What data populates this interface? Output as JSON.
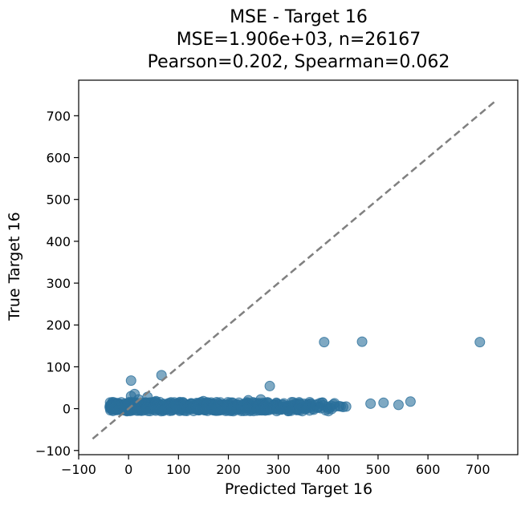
{
  "chart_data": {
    "type": "scatter",
    "title": "MSE - Target 16",
    "subtitle_lines": [
      "MSE=1.906e+03, n=26167",
      "Pearson=0.202, Spearman=0.062"
    ],
    "xlabel": "Predicted Target 16",
    "ylabel": "True Target 16",
    "xlim": [
      -100,
      780
    ],
    "ylim": [
      -110,
      785
    ],
    "xticks": [
      -100,
      0,
      100,
      200,
      300,
      400,
      500,
      600,
      700
    ],
    "xtick_labels": [
      "−100",
      "0",
      "100",
      "200",
      "300",
      "400",
      "500",
      "600",
      "700"
    ],
    "yticks": [
      -100,
      0,
      100,
      200,
      300,
      400,
      500,
      600,
      700
    ],
    "ytick_labels": [
      "−100",
      "0",
      "100",
      "200",
      "300",
      "400",
      "500",
      "600",
      "700"
    ],
    "grid": false,
    "colors": {
      "points": "#2a6f9b",
      "diagonal": "#808080"
    },
    "reference_line": {
      "style": "dashed",
      "from": [
        -72,
        -72
      ],
      "to": [
        735,
        735
      ]
    },
    "points": [
      [
        392,
        159
      ],
      [
        468,
        160
      ],
      [
        704,
        159
      ],
      [
        66,
        80
      ],
      [
        5,
        67
      ],
      [
        283,
        54
      ],
      [
        5,
        30
      ],
      [
        12,
        35
      ],
      [
        38,
        28
      ],
      [
        20,
        22
      ],
      [
        55,
        18
      ],
      [
        85,
        15
      ],
      [
        150,
        18
      ],
      [
        240,
        20
      ],
      [
        265,
        22
      ],
      [
        330,
        15
      ],
      [
        363,
        12
      ],
      [
        485,
        12
      ],
      [
        511,
        14
      ],
      [
        541,
        9
      ],
      [
        565,
        17
      ],
      [
        -35,
        5
      ],
      [
        -25,
        8
      ],
      [
        -15,
        3
      ],
      [
        -5,
        10
      ],
      [
        0,
        2
      ],
      [
        10,
        6
      ],
      [
        22,
        4
      ],
      [
        30,
        9
      ],
      [
        40,
        3
      ],
      [
        52,
        7
      ],
      [
        60,
        2
      ],
      [
        70,
        10
      ],
      [
        80,
        4
      ],
      [
        90,
        8
      ],
      [
        100,
        3
      ],
      [
        110,
        9
      ],
      [
        118,
        5
      ],
      [
        125,
        12
      ],
      [
        132,
        4
      ],
      [
        140,
        8
      ],
      [
        148,
        3
      ],
      [
        155,
        10
      ],
      [
        162,
        5
      ],
      [
        170,
        9
      ],
      [
        178,
        2
      ],
      [
        185,
        8
      ],
      [
        192,
        4
      ],
      [
        200,
        10
      ],
      [
        208,
        3
      ],
      [
        215,
        7
      ],
      [
        222,
        5
      ],
      [
        230,
        11
      ],
      [
        238,
        4
      ],
      [
        246,
        8
      ],
      [
        254,
        3
      ],
      [
        262,
        9
      ],
      [
        270,
        5
      ],
      [
        278,
        10
      ],
      [
        286,
        4
      ],
      [
        294,
        7
      ],
      [
        302,
        3
      ],
      [
        310,
        9
      ],
      [
        318,
        5
      ],
      [
        326,
        8
      ],
      [
        334,
        4
      ],
      [
        342,
        10
      ],
      [
        350,
        5
      ],
      [
        358,
        7
      ],
      [
        366,
        4
      ],
      [
        374,
        9
      ],
      [
        382,
        5
      ],
      [
        390,
        8
      ],
      [
        398,
        4
      ],
      [
        406,
        7
      ],
      [
        414,
        5
      ],
      [
        422,
        6
      ],
      [
        430,
        4
      ],
      [
        436,
        5
      ],
      [
        -30,
        0
      ],
      [
        -20,
        -2
      ],
      [
        -10,
        1
      ],
      [
        5,
        -3
      ],
      [
        15,
        0
      ],
      [
        25,
        -2
      ],
      [
        35,
        1
      ],
      [
        45,
        -1
      ],
      [
        55,
        0
      ],
      [
        65,
        -2
      ],
      [
        75,
        1
      ],
      [
        85,
        -1
      ],
      [
        95,
        0
      ],
      [
        105,
        -2
      ],
      [
        115,
        1
      ],
      [
        125,
        -1
      ],
      [
        135,
        0
      ],
      [
        145,
        -2
      ],
      [
        155,
        1
      ],
      [
        165,
        -1
      ],
      [
        175,
        0
      ],
      [
        185,
        -2
      ],
      [
        195,
        1
      ],
      [
        205,
        -1
      ],
      [
        215,
        0
      ],
      [
        225,
        -2
      ],
      [
        235,
        1
      ],
      [
        245,
        -1
      ],
      [
        255,
        0
      ],
      [
        265,
        -2
      ],
      [
        275,
        1
      ],
      [
        285,
        -1
      ],
      [
        295,
        0
      ],
      [
        305,
        -2
      ],
      [
        315,
        1
      ],
      [
        325,
        -1
      ],
      [
        340,
        0
      ],
      [
        355,
        -1
      ],
      [
        370,
        0
      ],
      [
        385,
        1
      ],
      [
        400,
        0
      ]
    ],
    "dense_band": {
      "x_from": -38,
      "x_to": 440,
      "y_from": -6,
      "y_to": 16
    }
  }
}
